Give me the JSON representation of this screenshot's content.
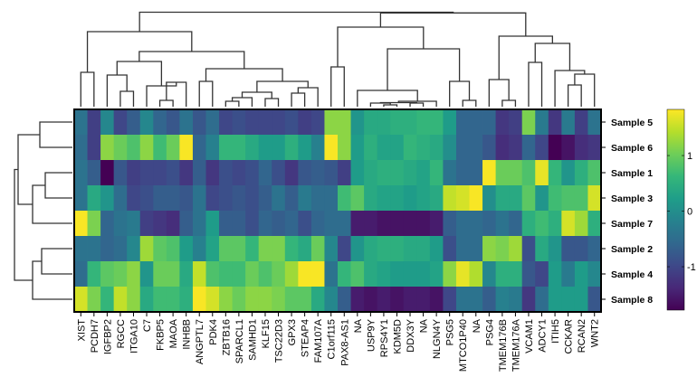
{
  "chart_data": {
    "type": "heatmap",
    "colormap": "viridis",
    "color_range": [
      -1.78,
      1.83
    ],
    "colorbar": {
      "ticks": [
        1,
        0,
        -1
      ],
      "tick_labels": [
        "1",
        "0",
        "-1"
      ]
    },
    "columns": [
      "XIST",
      "PCDH7",
      "IGFBP2",
      "RGCC",
      "ITGA10",
      "C7",
      "FKBP5",
      "MAOA",
      "INHBB",
      "ANGPTL7",
      "PDK4",
      "ZBTB16",
      "SPARCL1",
      "SAMHD1",
      "KLF15",
      "TSC22D3",
      "GPX3",
      "STEAP4",
      "FAM107A",
      "C1orf115",
      "PAX8-AS1",
      "NA",
      "USP9Y",
      "RPS4Y1",
      "KDM5D",
      "DDX3Y",
      "NA",
      "NLGN4Y",
      "PSG5",
      "MTCO1P40",
      "NA",
      "PSG4",
      "TMEM176B",
      "TMEM176A",
      "VCAM1",
      "ADCY1",
      "ITIH5",
      "CCKAR",
      "RCAN2",
      "WNT2"
    ],
    "rows": [
      "Sample 5",
      "Sample 6",
      "Sample 1",
      "Sample 3",
      "Sample 7",
      "Sample 2",
      "Sample 4",
      "Sample 8"
    ],
    "values": [
      [
        -0.4,
        -1.1,
        -0.1,
        -1.0,
        -0.7,
        -0.1,
        -0.6,
        -0.8,
        -0.4,
        -0.8,
        -0.5,
        -1.0,
        -0.9,
        -1.0,
        -1.0,
        -1.0,
        -0.9,
        -1.1,
        -1.0,
        1.2,
        1.2,
        0.1,
        0.4,
        0.4,
        0.5,
        0.5,
        0.6,
        0.6,
        0.2,
        -0.6,
        -0.6,
        -0.6,
        -1.2,
        -1.1,
        1.1,
        -0.3,
        -1.2,
        -0.3,
        -1.1,
        -0.4
      ],
      [
        -0.5,
        -1.1,
        1.2,
        1.0,
        0.8,
        1.2,
        0.7,
        1.0,
        1.8,
        -0.6,
        -0.2,
        0.6,
        0.6,
        0.4,
        0.2,
        0.2,
        0.5,
        0.2,
        -0.2,
        1.8,
        1.2,
        0.2,
        0.5,
        0.3,
        0.3,
        0.6,
        0.5,
        0.4,
        0.0,
        -0.6,
        -0.6,
        -0.8,
        -1.3,
        -1.2,
        -0.6,
        -1.0,
        -1.78,
        -1.6,
        -1.3,
        -1.2
      ],
      [
        -0.4,
        -0.7,
        -1.78,
        -0.8,
        -1.1,
        -1.0,
        -1.0,
        -0.9,
        -1.2,
        -0.7,
        -1.2,
        -0.9,
        -1.0,
        -0.9,
        -0.6,
        -0.9,
        -1.2,
        -0.8,
        -0.7,
        -0.8,
        -1.1,
        0.2,
        0.4,
        0.5,
        0.5,
        0.4,
        0.3,
        0.6,
        -0.4,
        -0.6,
        -0.6,
        1.8,
        1.0,
        1.0,
        0.8,
        1.7,
        0.6,
        0.1,
        0.5,
        0.8
      ],
      [
        -0.4,
        0.4,
        0.1,
        -0.5,
        -1.0,
        -0.9,
        -0.7,
        -0.7,
        -0.8,
        -0.4,
        -1.0,
        -0.9,
        -0.8,
        -0.9,
        -0.7,
        -0.4,
        -0.7,
        -0.3,
        -0.5,
        -0.5,
        0.7,
        0.9,
        0.4,
        0.3,
        0.3,
        0.2,
        0.3,
        0.4,
        1.5,
        1.6,
        1.8,
        0.0,
        0.4,
        0.4,
        0.9,
        0.1,
        0.7,
        0.8,
        0.8,
        1.6
      ],
      [
        1.8,
        1.1,
        -0.6,
        -0.4,
        -0.3,
        -1.1,
        -1.2,
        -1.3,
        -0.7,
        -0.4,
        0.2,
        -0.7,
        -0.7,
        -0.9,
        -0.6,
        -0.7,
        -0.6,
        -0.9,
        -0.6,
        -0.5,
        -0.5,
        -1.5,
        -1.5,
        -1.6,
        -1.6,
        -1.6,
        -1.6,
        -1.5,
        -0.7,
        -0.5,
        -0.5,
        -0.6,
        -0.4,
        -0.6,
        0.5,
        0.7,
        0.5,
        1.6,
        1.3,
        0.5
      ],
      [
        -0.4,
        -0.4,
        -0.6,
        -0.5,
        -0.1,
        1.3,
        0.9,
        0.8,
        0.2,
        -0.2,
        0.3,
        0.9,
        0.9,
        0.6,
        1.1,
        1.1,
        0.6,
        0.4,
        1.0,
        -0.1,
        -1.0,
        0.1,
        0.4,
        0.5,
        0.5,
        0.4,
        0.4,
        0.2,
        -0.9,
        -0.5,
        -0.5,
        1.2,
        1.1,
        1.3,
        -0.9,
        0.4,
        0.1,
        -0.8,
        -0.8,
        -0.6
      ],
      [
        -0.5,
        0.6,
        0.9,
        1.0,
        1.2,
        0.1,
        1.0,
        1.0,
        0.4,
        1.5,
        0.8,
        0.7,
        0.7,
        1.0,
        0.8,
        1.0,
        1.3,
        1.8,
        1.8,
        -0.4,
        0.6,
        0.8,
        0.4,
        0.3,
        0.2,
        0.2,
        0.2,
        0.3,
        1.2,
        1.7,
        1.4,
        -0.1,
        0.5,
        0.5,
        -0.8,
        -1.0,
        0.2,
        -0.3,
        0.2,
        -0.1
      ],
      [
        1.6,
        1.1,
        0.6,
        1.5,
        1.2,
        0.4,
        0.7,
        0.7,
        0.5,
        1.8,
        1.6,
        1.2,
        1.0,
        1.2,
        1.2,
        1.1,
        0.9,
        0.9,
        0.4,
        -0.1,
        -0.7,
        -1.5,
        -1.6,
        -1.5,
        -1.6,
        -1.5,
        -1.5,
        -1.6,
        -1.0,
        -0.4,
        -0.4,
        -0.7,
        -0.2,
        -0.3,
        -1.2,
        -0.5,
        0.2,
        0.2,
        0.2,
        -0.8
      ]
    ],
    "row_dendrogram": true,
    "column_dendrogram": true
  }
}
